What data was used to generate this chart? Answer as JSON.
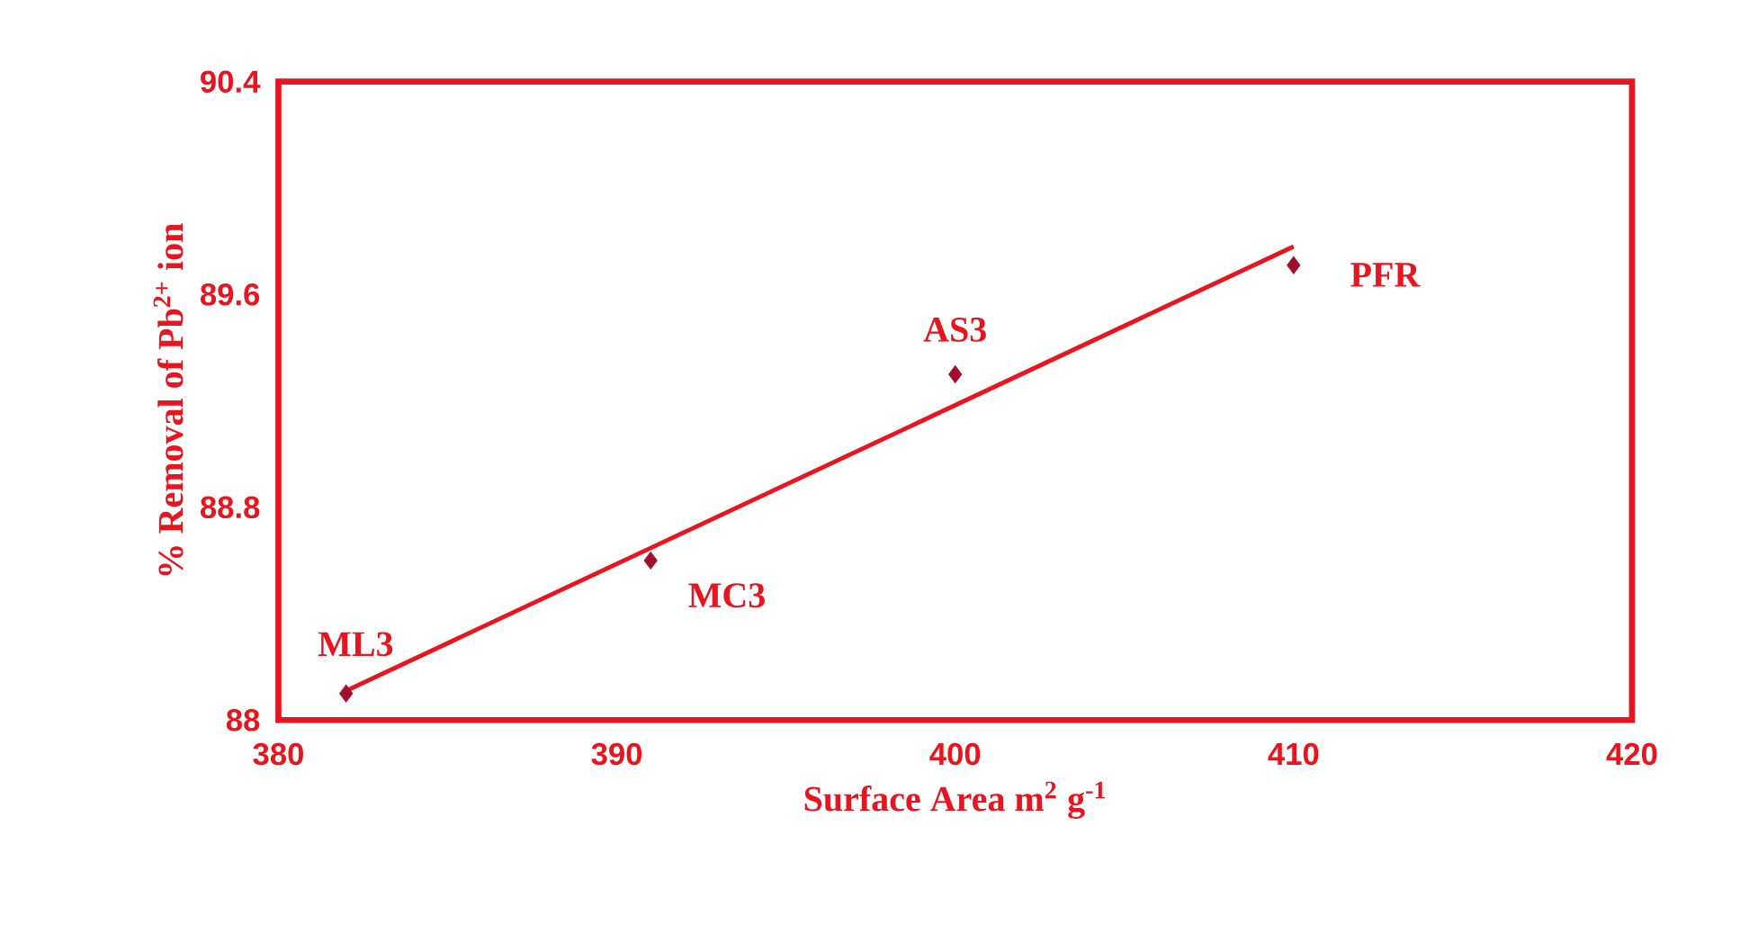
{
  "chart_data": {
    "type": "scatter",
    "xlabel": "Surface Area m$^{2}$ g$^{-1}$",
    "ylabel": "% Removal of Pb$^{2+}$ ion",
    "xlim": [
      380,
      420
    ],
    "ylim": [
      88,
      90.4
    ],
    "xticks": [
      380,
      390,
      400,
      410,
      420
    ],
    "yticks": [
      88,
      88.8,
      89.6,
      90.4
    ],
    "grid": false,
    "marker": "diamond",
    "series": [
      {
        "color": "#a0102a",
        "x": [
          382,
          391,
          400,
          410
        ],
        "values": [
          88.1,
          88.6,
          89.3,
          89.71
        ]
      },
      {
        "type": "line",
        "color": "#e8141e",
        "x": [
          382,
          410
        ],
        "values": [
          88.11,
          89.78
        ],
        "marker": "none",
        "line_style": "solid"
      }
    ],
    "annotations": [
      {
        "text": "ML3",
        "x": 382,
        "y": 88.1
      },
      {
        "text": "MC3",
        "x": 391,
        "y": 88.6
      },
      {
        "text": "AS3",
        "x": 400,
        "y": 89.3
      },
      {
        "text": "PFR",
        "x": 410,
        "y": 89.71
      }
    ]
  }
}
